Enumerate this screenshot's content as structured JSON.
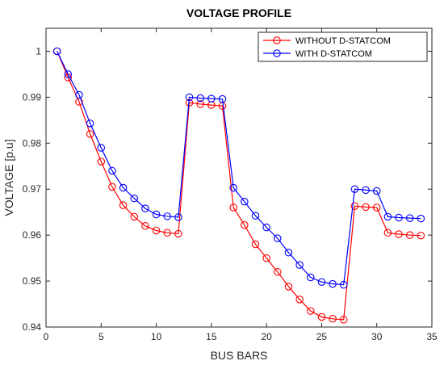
{
  "chart_data": {
    "type": "line",
    "title": "VOLTAGE PROFILE",
    "xlabel": "BUS BARS",
    "ylabel": "VOLTAGE [p.u]",
    "xlim": [
      0,
      35
    ],
    "ylim": [
      0.94,
      1.005
    ],
    "xticks": [
      0,
      5,
      10,
      15,
      20,
      25,
      30,
      35
    ],
    "yticks": [
      0.94,
      0.95,
      0.96,
      0.97,
      0.98,
      0.99,
      1.0
    ],
    "ytick_labels": [
      "0.94",
      "0.95",
      "0.96",
      "0.97",
      "0.98",
      "0.99",
      "1"
    ],
    "grid": false,
    "legend_position": "top-right",
    "x": [
      1,
      2,
      3,
      4,
      5,
      6,
      7,
      8,
      9,
      10,
      11,
      12,
      13,
      14,
      15,
      16,
      17,
      18,
      19,
      20,
      21,
      22,
      23,
      24,
      25,
      26,
      27,
      28,
      29,
      30,
      31,
      32,
      33,
      34
    ],
    "series": [
      {
        "name": "WITHOUT D-STATCOM",
        "color": "#ff0000",
        "values": [
          1.0,
          0.9943,
          0.989,
          0.982,
          0.976,
          0.9705,
          0.9665,
          0.964,
          0.962,
          0.961,
          0.9605,
          0.9603,
          0.9888,
          0.9885,
          0.9883,
          0.9881,
          0.966,
          0.9622,
          0.958,
          0.955,
          0.952,
          0.9488,
          0.946,
          0.9435,
          0.9422,
          0.9418,
          0.9416,
          0.9663,
          0.9661,
          0.966,
          0.9605,
          0.9602,
          0.96,
          0.9599
        ]
      },
      {
        "name": "WITH D-STATCOM",
        "color": "#0000ff",
        "values": [
          1.0,
          0.995,
          0.9905,
          0.9843,
          0.979,
          0.974,
          0.9703,
          0.968,
          0.9658,
          0.9645,
          0.9641,
          0.9639,
          0.99,
          0.9898,
          0.9897,
          0.9896,
          0.9703,
          0.9673,
          0.9642,
          0.9617,
          0.9593,
          0.9562,
          0.9535,
          0.9508,
          0.9498,
          0.9494,
          0.9492,
          0.97,
          0.9698,
          0.9696,
          0.964,
          0.9638,
          0.9637,
          0.9636
        ]
      }
    ]
  }
}
